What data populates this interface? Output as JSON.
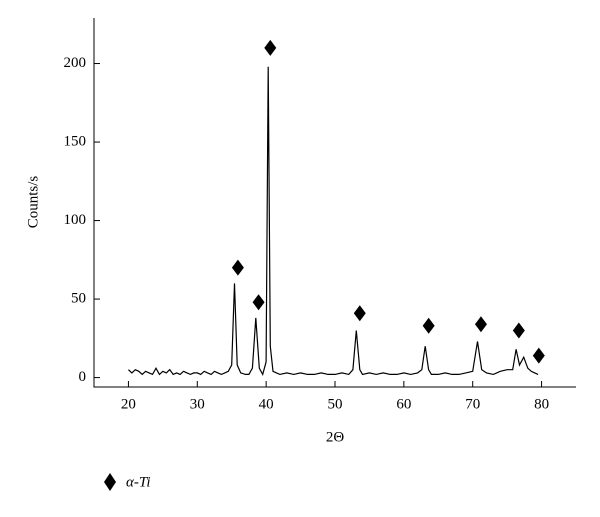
{
  "chart_data": {
    "type": "line",
    "x_label": "2Θ",
    "y_label": "Counts/s",
    "xlim": [
      15,
      85
    ],
    "ylim": [
      -6,
      229
    ],
    "xticks": [
      20,
      30,
      40,
      50,
      60,
      70,
      80
    ],
    "yticks": [
      0,
      50,
      100,
      150,
      200
    ],
    "series": [
      {
        "color": "#000000",
        "x": [
          20,
          20.5,
          21,
          21.5,
          22,
          22.5,
          23,
          23.5,
          24,
          24.5,
          25,
          25.5,
          26,
          26.5,
          27,
          27.5,
          28,
          28.5,
          29,
          29.5,
          30,
          30.5,
          31,
          31.5,
          32,
          32.5,
          33,
          33.5,
          34,
          34.5,
          35,
          35.4,
          35.8,
          36.3,
          37,
          37.5,
          38,
          38.5,
          39,
          39.5,
          40,
          40.3,
          40.6,
          41,
          41.5,
          42,
          43,
          44,
          45,
          46,
          47,
          48,
          49,
          50,
          51,
          52,
          52.6,
          53.1,
          53.6,
          54,
          55,
          56,
          57,
          58,
          59,
          60,
          61,
          62,
          62.6,
          63.1,
          63.6,
          64,
          65,
          66,
          67,
          68,
          69,
          70,
          70.7,
          71.3,
          72,
          73,
          74,
          75,
          75.8,
          76.3,
          76.8,
          77.4,
          78,
          78.5,
          79,
          79.5
        ],
        "values": [
          5,
          3,
          5,
          4,
          2,
          4,
          3,
          2,
          6,
          2,
          4,
          3,
          5,
          2,
          3,
          2,
          4,
          3,
          2,
          3,
          3,
          2,
          4,
          3,
          2,
          4,
          3,
          2,
          3,
          4,
          8,
          60,
          8,
          3,
          2,
          2,
          6,
          38,
          6,
          2,
          10,
          198,
          20,
          4,
          3,
          2,
          3,
          2,
          3,
          2,
          2,
          3,
          2,
          2,
          3,
          2,
          5,
          30,
          5,
          2,
          3,
          2,
          3,
          2,
          2,
          3,
          2,
          3,
          5,
          20,
          5,
          2,
          2,
          3,
          2,
          2,
          3,
          4,
          23,
          5,
          3,
          2,
          4,
          5,
          5,
          18,
          8,
          13,
          6,
          4,
          3,
          2
        ]
      }
    ],
    "markers": {
      "name": "α-Ti",
      "color": "#000000",
      "x": [
        35.9,
        38.9,
        40.6,
        53.6,
        63.6,
        71.2,
        76.7,
        79.6
      ],
      "y": [
        70,
        48,
        210,
        41,
        33,
        34,
        30,
        14
      ]
    }
  }
}
